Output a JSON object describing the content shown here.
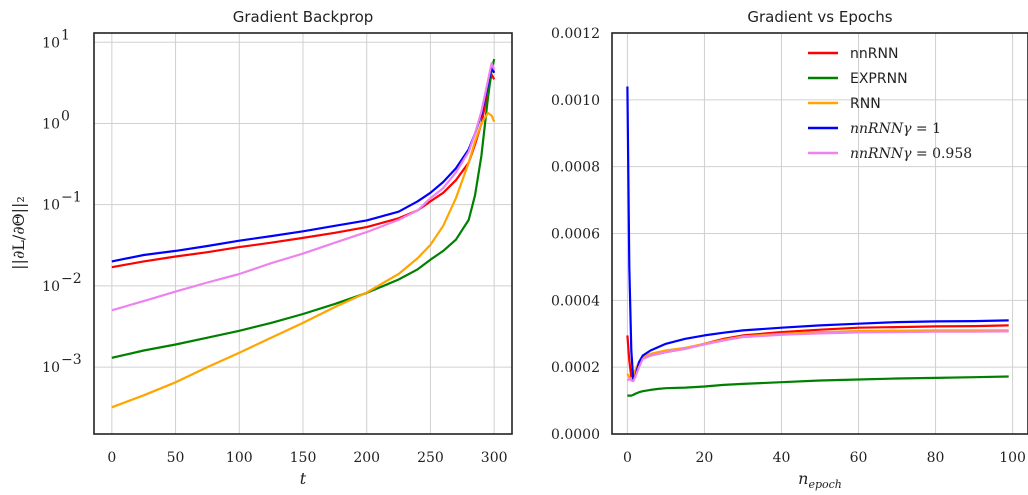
{
  "chart_data": [
    {
      "type": "line",
      "title": "Gradient Backprop",
      "xlabel": "t",
      "ylabel": "||∂L/∂Θ||₂",
      "yscale": "log",
      "xlim": [
        -14,
        314
      ],
      "ylim": [
        0.00015,
        13
      ],
      "grid": true,
      "x_ticks": [
        0,
        50,
        100,
        150,
        200,
        250,
        300
      ],
      "x_tick_labels": [
        "0",
        "50",
        "100",
        "150",
        "200",
        "250",
        "300"
      ],
      "y_ticks": [
        0.001,
        0.01,
        0.1,
        1,
        10
      ],
      "y_tick_labels": [
        "10",
        "10",
        "10",
        "10",
        "10"
      ],
      "y_tick_exponents": [
        "−3",
        "−2",
        "−1",
        "0",
        "1"
      ],
      "x": [
        0,
        25,
        50,
        75,
        100,
        125,
        150,
        175,
        200,
        225,
        240,
        250,
        260,
        270,
        280,
        285,
        290,
        295,
        298,
        300
      ],
      "series": [
        {
          "color": "#ff0000",
          "values": [
            0.017,
            0.02,
            0.023,
            0.026,
            0.03,
            0.034,
            0.039,
            0.045,
            0.053,
            0.068,
            0.085,
            0.11,
            0.14,
            0.2,
            0.33,
            0.55,
            1.0,
            2.5,
            4.0,
            3.5
          ]
        },
        {
          "color": "#008000",
          "values": [
            0.0013,
            0.0016,
            0.0019,
            0.0023,
            0.0028,
            0.0035,
            0.0045,
            0.006,
            0.0082,
            0.012,
            0.016,
            0.021,
            0.027,
            0.037,
            0.065,
            0.13,
            0.4,
            2.0,
            4.5,
            6.2
          ]
        },
        {
          "color": "#ffa500",
          "values": [
            0.00032,
            0.00045,
            0.00065,
            0.001,
            0.0015,
            0.0023,
            0.0035,
            0.0055,
            0.0083,
            0.014,
            0.022,
            0.032,
            0.055,
            0.12,
            0.33,
            0.6,
            1.0,
            1.35,
            1.25,
            1.05
          ]
        },
        {
          "color": "#0000ff",
          "values": [
            0.02,
            0.024,
            0.027,
            0.031,
            0.036,
            0.041,
            0.047,
            0.055,
            0.064,
            0.082,
            0.11,
            0.14,
            0.19,
            0.28,
            0.48,
            0.75,
            1.3,
            3.0,
            5.0,
            4.2
          ]
        },
        {
          "color": "#ee82ee",
          "values": [
            0.005,
            0.0065,
            0.0085,
            0.011,
            0.014,
            0.019,
            0.025,
            0.034,
            0.046,
            0.065,
            0.085,
            0.12,
            0.16,
            0.25,
            0.45,
            0.75,
            1.4,
            3.3,
            5.5,
            4.6
          ]
        }
      ]
    },
    {
      "type": "line",
      "title": "Gradient vs Epochs",
      "xlabel": "n_epoch",
      "xlabel_base": "n",
      "xlabel_sub": "epoch",
      "ylabel": "",
      "xlim": [
        -4,
        104
      ],
      "ylim": [
        0,
        0.0012
      ],
      "grid": true,
      "x_ticks": [
        0,
        20,
        40,
        60,
        80,
        100
      ],
      "x_tick_labels": [
        "0",
        "20",
        "40",
        "60",
        "80",
        "100"
      ],
      "y_ticks": [
        0,
        0.0002,
        0.0004,
        0.0006,
        0.0008,
        0.001,
        0.0012
      ],
      "y_tick_labels": [
        "0.0000",
        "0.0002",
        "0.0004",
        "0.0006",
        "0.0008",
        "0.0010",
        "0.0012"
      ],
      "legend_position": "upper right",
      "x": [
        0,
        0.5,
        1,
        1.5,
        2,
        3,
        4,
        6,
        8,
        10,
        15,
        20,
        25,
        30,
        40,
        50,
        60,
        70,
        80,
        90,
        99
      ],
      "series": [
        {
          "name": "nnRNN",
          "color": "#ff0000",
          "values": [
            0.000295,
            0.00022,
            0.00017,
            0.000165,
            0.00018,
            0.00021,
            0.000225,
            0.000235,
            0.00024,
            0.000245,
            0.000255,
            0.00027,
            0.000285,
            0.000295,
            0.000305,
            0.000312,
            0.000318,
            0.00032,
            0.000322,
            0.000323,
            0.000325
          ]
        },
        {
          "name": "EXPRNN",
          "color": "#008000",
          "values": [
            0.000115,
            0.000115,
            0.000115,
            0.000117,
            0.00012,
            0.000125,
            0.000128,
            0.000132,
            0.000135,
            0.000137,
            0.000139,
            0.000142,
            0.000147,
            0.00015,
            0.000155,
            0.00016,
            0.000163,
            0.000166,
            0.000168,
            0.00017,
            0.000172
          ]
        },
        {
          "name": "RNN",
          "color": "#ffa500",
          "values": [
            0.00018,
            0.00017,
            0.000165,
            0.00017,
            0.00019,
            0.000215,
            0.00023,
            0.00024,
            0.000245,
            0.00025,
            0.000258,
            0.00027,
            0.000282,
            0.000292,
            0.0003,
            0.000305,
            0.000308,
            0.000309,
            0.00031,
            0.00031,
            0.00031
          ]
        },
        {
          "name": "nnRNNγ = 1",
          "name_base": "nnRNNγ = ",
          "name_num": "1",
          "color": "#0000ff",
          "values": [
            0.00104,
            0.0005,
            0.00025,
            0.000165,
            0.00017,
            0.000215,
            0.000235,
            0.00025,
            0.00026,
            0.00027,
            0.000285,
            0.000295,
            0.000303,
            0.00031,
            0.000318,
            0.000325,
            0.00033,
            0.000335,
            0.000337,
            0.000338,
            0.00034
          ]
        },
        {
          "name": "nnRNNγ = 0.958",
          "name_base": "nnRNNγ = ",
          "name_num": "0.958",
          "color": "#ee82ee",
          "values": [
            0.00016,
            0.000165,
            0.00016,
            0.000158,
            0.00017,
            0.0002,
            0.000225,
            0.000235,
            0.00024,
            0.000245,
            0.000255,
            0.000268,
            0.00028,
            0.00029,
            0.000297,
            0.000301,
            0.000304,
            0.000305,
            0.000306,
            0.000306,
            0.000307
          ]
        }
      ]
    }
  ]
}
